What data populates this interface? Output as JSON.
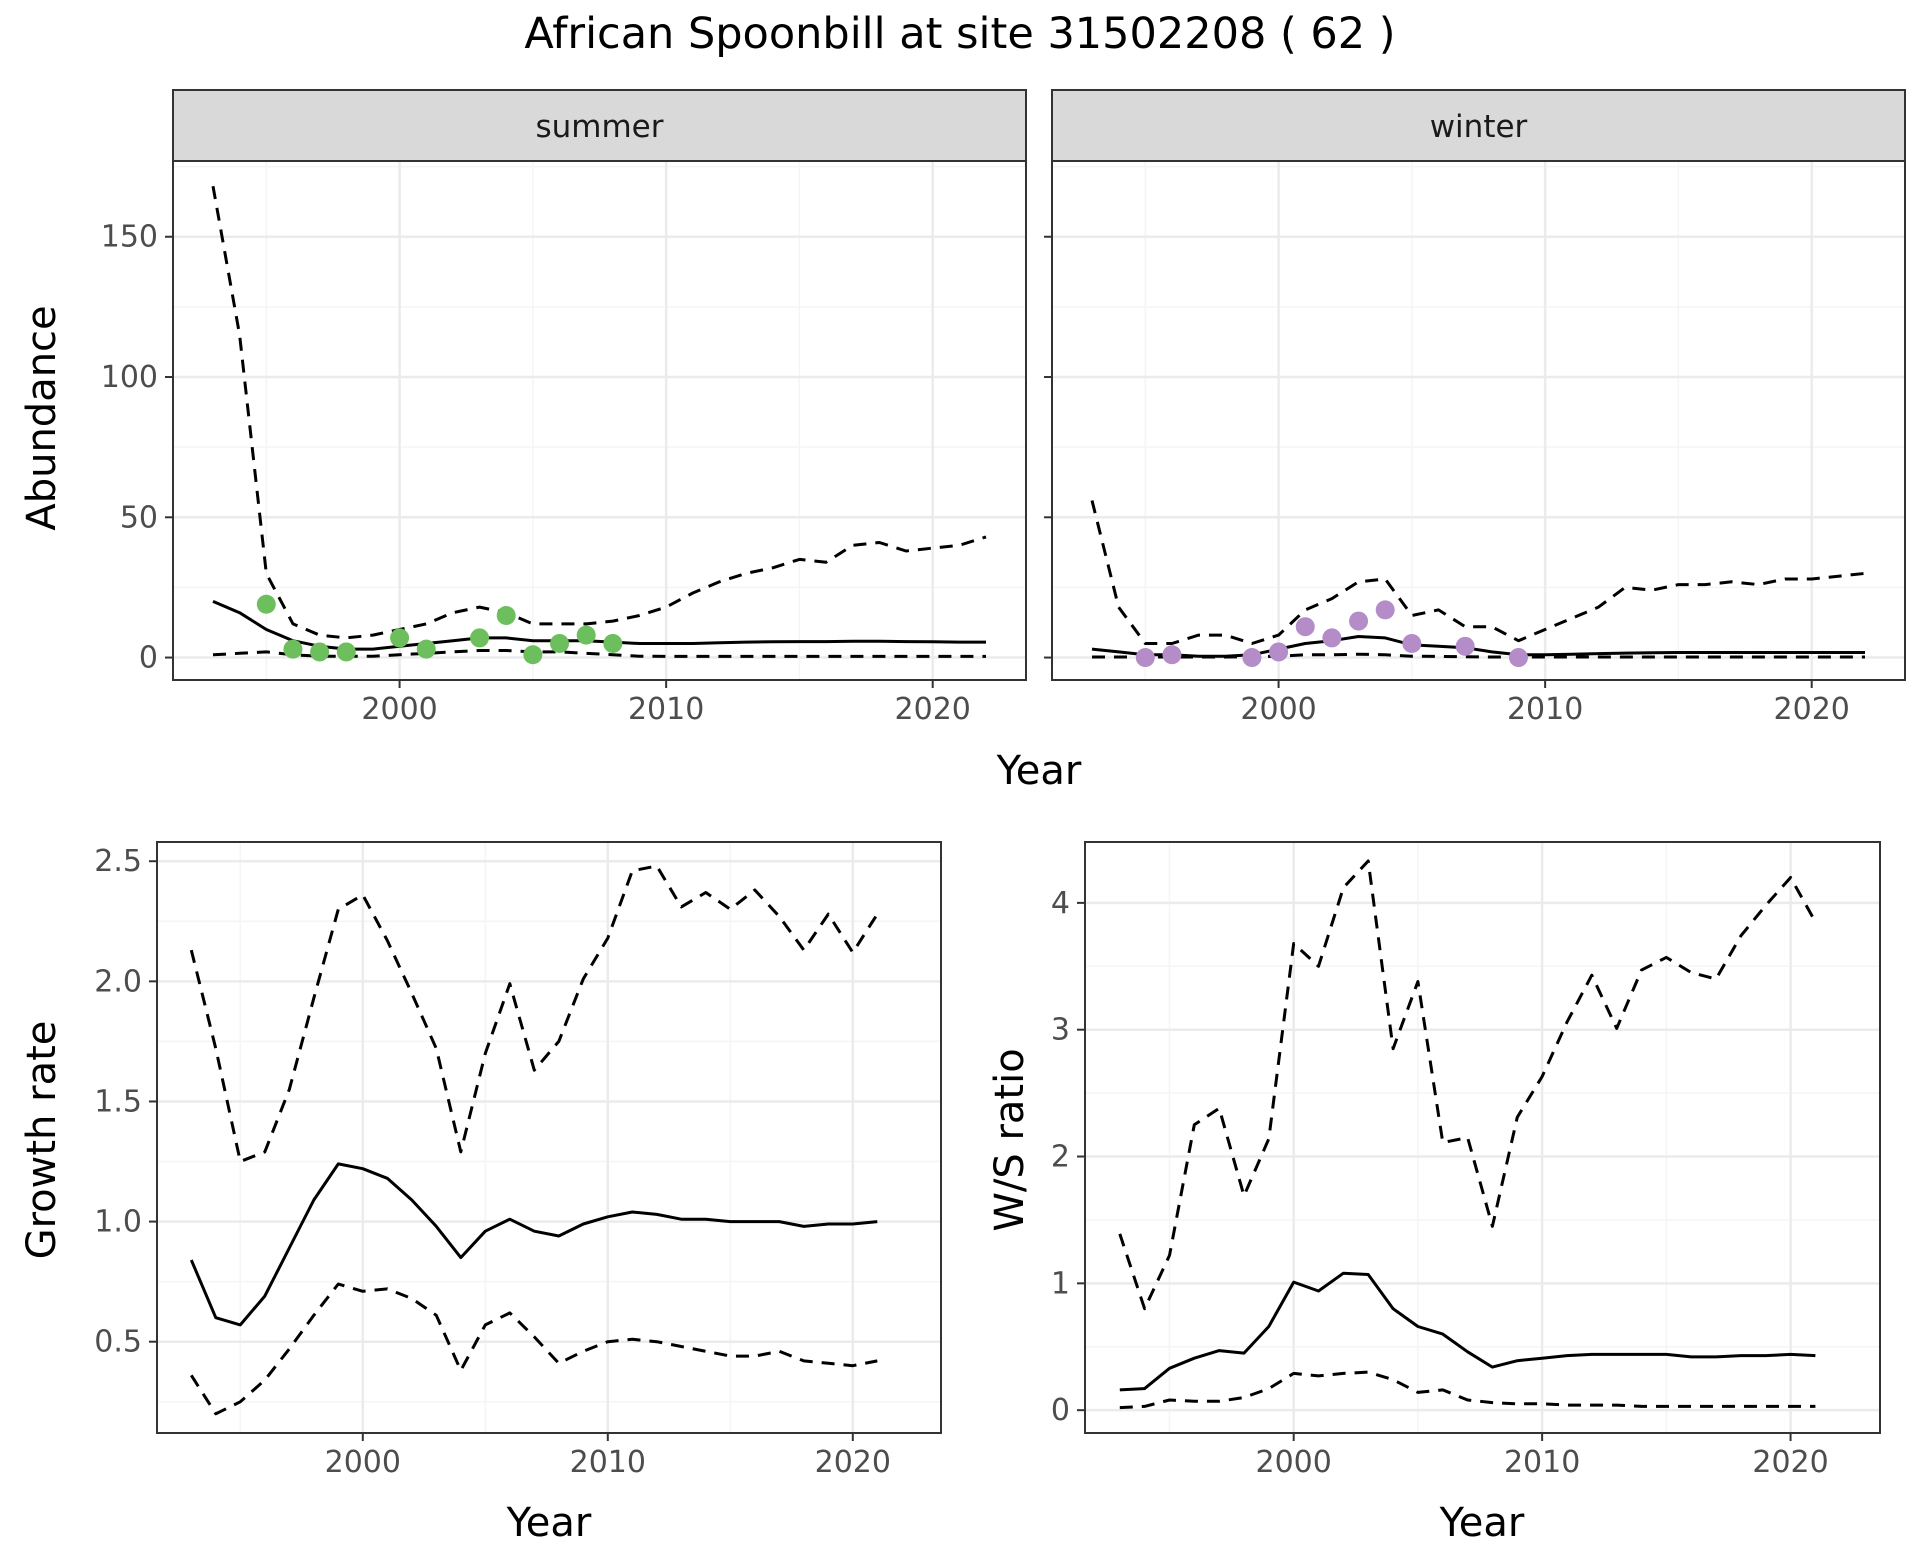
{
  "title": "African Spoonbill at site 31502208 ( 62 )",
  "colors": {
    "summer_points": "#6cbf5c",
    "winter_points": "#b48cc8",
    "lines": "#000000",
    "grid_major": "#ebebeb",
    "grid_minor": "#f5f5f5",
    "strip_fill": "#d9d9d9",
    "strip_border": "#333333"
  },
  "chart_data": [
    {
      "type": "line",
      "facet": "summer",
      "xlabel": "Year",
      "ylabel": "Abundance",
      "xlim": [
        1991.5,
        2023.5
      ],
      "ylim": [
        -8,
        177
      ],
      "xticks": [
        2000,
        2010,
        2020
      ],
      "yticks": [
        0,
        50,
        100,
        150
      ],
      "x": [
        1993,
        1994,
        1995,
        1996,
        1997,
        1998,
        1999,
        2000,
        2001,
        2002,
        2003,
        2004,
        2005,
        2006,
        2007,
        2008,
        2009,
        2010,
        2011,
        2012,
        2013,
        2014,
        2015,
        2016,
        2017,
        2018,
        2019,
        2020,
        2021,
        2022
      ],
      "series": [
        {
          "style": "solid",
          "values": [
            20,
            16,
            10,
            6,
            4,
            3,
            3,
            4,
            5,
            6,
            7,
            7,
            6,
            6,
            6,
            5.5,
            5,
            5,
            5,
            5.3,
            5.5,
            5.6,
            5.7,
            5.7,
            5.8,
            5.8,
            5.7,
            5.6,
            5.5,
            5.5
          ]
        },
        {
          "style": "dashed",
          "values": [
            168,
            115,
            30,
            12,
            8,
            7,
            8,
            10,
            12,
            16,
            18,
            16,
            12,
            12,
            12,
            13,
            15,
            18,
            23,
            27,
            30,
            32,
            35,
            34,
            40,
            41,
            38,
            39,
            40,
            43
          ]
        },
        {
          "style": "dashed",
          "values": [
            1,
            1.5,
            2,
            1,
            0.5,
            0.5,
            0.5,
            1,
            1.5,
            2,
            2.5,
            2.5,
            2,
            2,
            1.5,
            1,
            0.5,
            0.4,
            0.4,
            0.4,
            0.4,
            0.4,
            0.4,
            0.4,
            0.4,
            0.4,
            0.4,
            0.4,
            0.4,
            0.4
          ]
        }
      ],
      "points": {
        "x": [
          1995,
          1996,
          1997,
          1998,
          2000,
          2001,
          2003,
          2004,
          2005,
          2006,
          2007,
          2008
        ],
        "y": [
          19,
          3,
          2,
          2,
          7,
          3,
          7,
          15,
          1,
          5,
          8,
          5
        ]
      }
    },
    {
      "type": "line",
      "facet": "winter",
      "xlabel": "Year",
      "ylabel": "",
      "xlim": [
        1991.5,
        2023.5
      ],
      "ylim": [
        -8,
        177
      ],
      "xticks": [
        2000,
        2010,
        2020
      ],
      "yticks": [
        0,
        50,
        100,
        150
      ],
      "x": [
        1993,
        1994,
        1995,
        1996,
        1997,
        1998,
        1999,
        2000,
        2001,
        2002,
        2003,
        2004,
        2005,
        2006,
        2007,
        2008,
        2009,
        2010,
        2011,
        2012,
        2013,
        2014,
        2015,
        2016,
        2017,
        2018,
        2019,
        2020,
        2021,
        2022
      ],
      "series": [
        {
          "style": "solid",
          "values": [
            3,
            2,
            1,
            1,
            0.5,
            0.5,
            1,
            3,
            5,
            6,
            7.5,
            7,
            4.5,
            4,
            3.5,
            2,
            1,
            1,
            1.2,
            1.4,
            1.6,
            1.7,
            1.8,
            1.8,
            1.8,
            1.8,
            1.8,
            1.8,
            1.8,
            1.8
          ]
        },
        {
          "style": "dashed",
          "values": [
            56,
            18,
            5,
            5,
            8,
            8,
            5,
            8,
            17,
            21,
            27,
            28,
            15,
            17,
            11,
            11,
            6,
            10,
            14,
            18,
            25,
            24,
            26,
            26,
            27,
            26,
            28,
            28,
            29,
            30
          ]
        },
        {
          "style": "dashed",
          "values": [
            0.2,
            0.2,
            0.2,
            0.2,
            0.2,
            0.2,
            0.3,
            0.5,
            1,
            1,
            1.2,
            1,
            0.5,
            0.4,
            0.3,
            0.2,
            0.2,
            0.2,
            0.2,
            0.2,
            0.2,
            0.2,
            0.2,
            0.2,
            0.2,
            0.2,
            0.2,
            0.2,
            0.2,
            0.2
          ]
        }
      ],
      "points": {
        "x": [
          1995,
          1996,
          1999,
          2000,
          2001,
          2002,
          2003,
          2004,
          2005,
          2007,
          2009
        ],
        "y": [
          0,
          1,
          0,
          2,
          11,
          7,
          13,
          17,
          5,
          4,
          0
        ]
      }
    },
    {
      "type": "line",
      "facet": "",
      "xlabel": "Year",
      "ylabel": "Growth rate",
      "xlim": [
        1991.6,
        2023.6
      ],
      "ylim": [
        0.12,
        2.58
      ],
      "xticks": [
        2000,
        2010,
        2020
      ],
      "yticks": [
        0.5,
        1.0,
        1.5,
        2.0,
        2.5
      ],
      "ytick_labels": [
        "0.5",
        "1.0",
        "1.5",
        "2.0",
        "2.5"
      ],
      "x": [
        1993,
        1994,
        1995,
        1996,
        1997,
        1998,
        1999,
        2000,
        2001,
        2002,
        2003,
        2004,
        2005,
        2006,
        2007,
        2008,
        2009,
        2010,
        2011,
        2012,
        2013,
        2014,
        2015,
        2016,
        2017,
        2018,
        2019,
        2020,
        2021
      ],
      "series": [
        {
          "style": "solid",
          "values": [
            0.84,
            0.6,
            0.57,
            0.69,
            0.89,
            1.09,
            1.24,
            1.22,
            1.18,
            1.09,
            0.98,
            0.85,
            0.96,
            1.01,
            0.96,
            0.94,
            0.99,
            1.02,
            1.04,
            1.03,
            1.01,
            1.01,
            1.0,
            1.0,
            1.0,
            0.98,
            0.99,
            0.99,
            1.0
          ]
        },
        {
          "style": "dashed",
          "values": [
            2.13,
            1.72,
            1.25,
            1.29,
            1.55,
            1.93,
            2.3,
            2.36,
            2.17,
            1.95,
            1.72,
            1.29,
            1.7,
            1.99,
            1.63,
            1.75,
            2.01,
            2.18,
            2.46,
            2.48,
            2.31,
            2.37,
            2.3,
            2.38,
            2.27,
            2.13,
            2.28,
            2.12,
            2.28
          ]
        },
        {
          "style": "dashed",
          "values": [
            0.36,
            0.2,
            0.25,
            0.34,
            0.47,
            0.61,
            0.74,
            0.71,
            0.72,
            0.68,
            0.61,
            0.38,
            0.57,
            0.62,
            0.52,
            0.41,
            0.46,
            0.5,
            0.51,
            0.5,
            0.48,
            0.46,
            0.44,
            0.44,
            0.46,
            0.42,
            0.41,
            0.4,
            0.42
          ]
        }
      ]
    },
    {
      "type": "line",
      "facet": "",
      "xlabel": "Year",
      "ylabel": "W/S ratio",
      "xlim": [
        1991.6,
        2023.6
      ],
      "ylim": [
        -0.18,
        4.48
      ],
      "xticks": [
        2000,
        2010,
        2020
      ],
      "yticks": [
        0,
        1,
        2,
        3,
        4
      ],
      "x": [
        1993,
        1994,
        1995,
        1996,
        1997,
        1998,
        1999,
        2000,
        2001,
        2002,
        2003,
        2004,
        2005,
        2006,
        2007,
        2008,
        2009,
        2010,
        2011,
        2012,
        2013,
        2014,
        2015,
        2016,
        2017,
        2018,
        2019,
        2020,
        2021
      ],
      "series": [
        {
          "style": "solid",
          "values": [
            0.16,
            0.17,
            0.33,
            0.41,
            0.47,
            0.45,
            0.66,
            1.01,
            0.94,
            1.08,
            1.07,
            0.8,
            0.66,
            0.6,
            0.46,
            0.34,
            0.39,
            0.41,
            0.43,
            0.44,
            0.44,
            0.44,
            0.44,
            0.42,
            0.42,
            0.43,
            0.43,
            0.44,
            0.43
          ]
        },
        {
          "style": "dashed",
          "values": [
            1.39,
            0.8,
            1.22,
            2.25,
            2.38,
            1.69,
            2.14,
            3.68,
            3.5,
            4.12,
            4.33,
            2.85,
            3.38,
            2.11,
            2.15,
            1.45,
            2.31,
            2.63,
            3.06,
            3.43,
            3.01,
            3.47,
            3.57,
            3.45,
            3.4,
            3.74,
            3.98,
            4.2,
            3.85
          ]
        },
        {
          "style": "dashed",
          "values": [
            0.02,
            0.03,
            0.08,
            0.07,
            0.07,
            0.1,
            0.17,
            0.29,
            0.27,
            0.29,
            0.3,
            0.24,
            0.14,
            0.16,
            0.08,
            0.06,
            0.05,
            0.05,
            0.04,
            0.04,
            0.04,
            0.03,
            0.03,
            0.03,
            0.03,
            0.03,
            0.03,
            0.03,
            0.03
          ]
        }
      ]
    }
  ]
}
